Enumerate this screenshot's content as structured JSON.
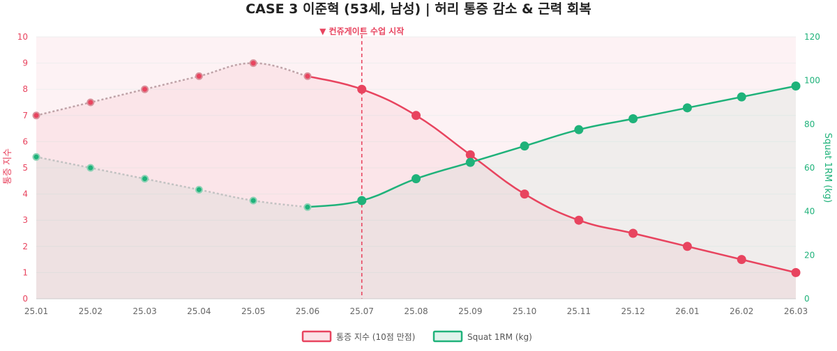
{
  "chart_data": {
    "type": "line",
    "title": "CASE 3  이준혁 (53세, 남성)  |  허리 통증 감소 & 근력 회복",
    "categories": [
      "25.01",
      "25.02",
      "25.03",
      "25.04",
      "25.05",
      "25.06",
      "25.07",
      "25.08",
      "25.09",
      "25.10",
      "25.11",
      "25.12",
      "26.01",
      "26.02",
      "26.03"
    ],
    "y_left": {
      "label": "통증 지수",
      "range": [
        0,
        10
      ],
      "ticks": [
        "0",
        "1",
        "2",
        "3",
        "4",
        "5",
        "6",
        "7",
        "8",
        "9",
        "10"
      ]
    },
    "y_right": {
      "label": "Squat 1RM (kg)",
      "range": [
        0,
        120
      ],
      "ticks": [
        "0",
        "20",
        "40",
        "60",
        "80",
        "100",
        "120"
      ]
    },
    "series": [
      {
        "name": "통증 지수 (10점 만점)",
        "axis": "left",
        "color": "#e8445f",
        "values": [
          7,
          7.5,
          8,
          8.5,
          9,
          8.5,
          8,
          7,
          5.5,
          4,
          3,
          2.5,
          2,
          1.5,
          1
        ]
      },
      {
        "name": "Squat 1RM (kg)",
        "axis": "right",
        "color": "#1fb27a",
        "values": [
          65,
          60,
          55,
          50,
          45,
          42,
          45,
          55,
          62.5,
          70,
          77.5,
          82.5,
          87.5,
          92.5,
          97.5
        ]
      }
    ],
    "annotation": {
      "label": "▼ 컨쥬게이트 수업 시작",
      "at_category": "25.07"
    },
    "legend_position": "bottom",
    "grid": true
  },
  "colors": {
    "pain": "#e8445f",
    "squat": "#1fb27a",
    "pre_dashed": "#bbbbbb",
    "grid": "#eeeeee"
  }
}
